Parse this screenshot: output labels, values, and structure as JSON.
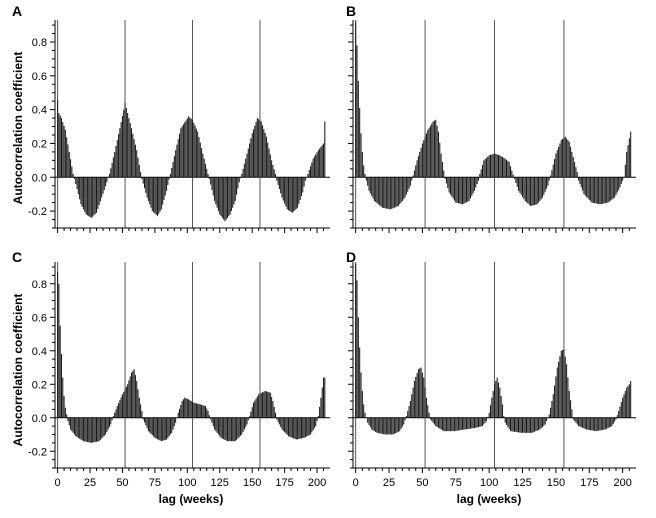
{
  "figure": {
    "ylabel": "Autocorrelation coefficient",
    "xlabel": "lag (weeks)"
  },
  "chart_data": [
    {
      "type": "bar",
      "panel": "A",
      "xlabel": "",
      "ylabel": "Autocorrelation coefficient",
      "xlim": [
        -2,
        210
      ],
      "ylim": [
        -0.3,
        0.93
      ],
      "xticks": [],
      "yticks": [
        -0.2,
        0.0,
        0.2,
        0.4,
        0.6,
        0.8
      ],
      "yticklabels": [
        "-0.2",
        "0.0",
        "0.2",
        "0.4",
        "0.6",
        "0.8"
      ],
      "vlines": [
        0,
        52,
        104,
        156
      ],
      "keypoints": [
        [
          0,
          0.46
        ],
        [
          1,
          0.38
        ],
        [
          3,
          0.35
        ],
        [
          6,
          0.28
        ],
        [
          9,
          0.15
        ],
        [
          12,
          0.02
        ],
        [
          13,
          -0.01
        ],
        [
          18,
          -0.16
        ],
        [
          22,
          -0.22
        ],
        [
          26,
          -0.24
        ],
        [
          30,
          -0.21
        ],
        [
          34,
          -0.12
        ],
        [
          38,
          -0.03
        ],
        [
          40,
          0.02
        ],
        [
          44,
          0.15
        ],
        [
          48,
          0.29
        ],
        [
          51,
          0.4
        ],
        [
          52,
          0.44
        ],
        [
          54,
          0.38
        ],
        [
          57,
          0.29
        ],
        [
          61,
          0.16
        ],
        [
          64,
          0.03
        ],
        [
          65,
          -0.01
        ],
        [
          69,
          -0.12
        ],
        [
          73,
          -0.2
        ],
        [
          77,
          -0.23
        ],
        [
          80,
          -0.19
        ],
        [
          84,
          -0.08
        ],
        [
          87,
          0.02
        ],
        [
          91,
          0.16
        ],
        [
          95,
          0.29
        ],
        [
          101,
          0.36
        ],
        [
          104,
          0.34
        ],
        [
          108,
          0.27
        ],
        [
          112,
          0.14
        ],
        [
          116,
          0.02
        ],
        [
          117,
          -0.01
        ],
        [
          121,
          -0.14
        ],
        [
          125,
          -0.22
        ],
        [
          129,
          -0.26
        ],
        [
          133,
          -0.22
        ],
        [
          137,
          -0.14
        ],
        [
          140,
          -0.03
        ],
        [
          142,
          0.02
        ],
        [
          146,
          0.14
        ],
        [
          150,
          0.26
        ],
        [
          154,
          0.35
        ],
        [
          157,
          0.33
        ],
        [
          161,
          0.24
        ],
        [
          165,
          0.1
        ],
        [
          168,
          0.02
        ],
        [
          169,
          -0.02
        ],
        [
          173,
          -0.12
        ],
        [
          177,
          -0.19
        ],
        [
          181,
          -0.21
        ],
        [
          185,
          -0.18
        ],
        [
          189,
          -0.09
        ],
        [
          191,
          -0.02
        ],
        [
          193,
          0.02
        ],
        [
          197,
          0.11
        ],
        [
          201,
          0.16
        ],
        [
          205,
          0.2
        ],
        [
          206,
          0.33
        ]
      ]
    },
    {
      "type": "bar",
      "panel": "B",
      "xlabel": "",
      "ylabel": "",
      "xlim": [
        -2,
        210
      ],
      "ylim": [
        -0.3,
        0.93
      ],
      "xticks": [],
      "yticks": [
        -0.2,
        0.0,
        0.2,
        0.4,
        0.6,
        0.8
      ],
      "yticklabels": [],
      "vlines": [
        0,
        52,
        104,
        156
      ],
      "keypoints": [
        [
          0,
          0.92
        ],
        [
          1,
          0.78
        ],
        [
          2,
          0.57
        ],
        [
          3,
          0.41
        ],
        [
          4,
          0.26
        ],
        [
          5,
          0.15
        ],
        [
          6,
          0.07
        ],
        [
          7,
          0.02
        ],
        [
          8,
          -0.02
        ],
        [
          10,
          -0.08
        ],
        [
          14,
          -0.14
        ],
        [
          20,
          -0.18
        ],
        [
          26,
          -0.19
        ],
        [
          32,
          -0.17
        ],
        [
          37,
          -0.12
        ],
        [
          41,
          -0.05
        ],
        [
          43,
          0.01
        ],
        [
          46,
          0.1
        ],
        [
          50,
          0.2
        ],
        [
          54,
          0.28
        ],
        [
          58,
          0.33
        ],
        [
          60,
          0.34
        ],
        [
          62,
          0.27
        ],
        [
          64,
          0.14
        ],
        [
          66,
          0.04
        ],
        [
          67,
          -0.01
        ],
        [
          70,
          -0.09
        ],
        [
          75,
          -0.15
        ],
        [
          80,
          -0.16
        ],
        [
          85,
          -0.14
        ],
        [
          89,
          -0.08
        ],
        [
          92,
          -0.02
        ],
        [
          93,
          0.02
        ],
        [
          96,
          0.1
        ],
        [
          100,
          0.13
        ],
        [
          104,
          0.14
        ],
        [
          108,
          0.13
        ],
        [
          112,
          0.11
        ],
        [
          115,
          0.09
        ],
        [
          117,
          0.04
        ],
        [
          119,
          -0.01
        ],
        [
          122,
          -0.08
        ],
        [
          127,
          -0.14
        ],
        [
          131,
          -0.17
        ],
        [
          136,
          -0.16
        ],
        [
          140,
          -0.12
        ],
        [
          144,
          -0.05
        ],
        [
          146,
          0.01
        ],
        [
          150,
          0.14
        ],
        [
          154,
          0.22
        ],
        [
          157,
          0.24
        ],
        [
          160,
          0.21
        ],
        [
          163,
          0.12
        ],
        [
          166,
          0.03
        ],
        [
          167,
          -0.02
        ],
        [
          171,
          -0.1
        ],
        [
          177,
          -0.15
        ],
        [
          183,
          -0.16
        ],
        [
          189,
          -0.15
        ],
        [
          194,
          -0.12
        ],
        [
          198,
          -0.06
        ],
        [
          201,
          0.0
        ],
        [
          203,
          0.15
        ],
        [
          206,
          0.27
        ]
      ]
    },
    {
      "type": "bar",
      "panel": "C",
      "xlabel": "lag (weeks)",
      "ylabel": "Autocorrelation coefficient",
      "xlim": [
        -2,
        210
      ],
      "ylim": [
        -0.3,
        0.93
      ],
      "xticks": [
        0,
        25,
        50,
        75,
        100,
        125,
        150,
        175,
        200
      ],
      "yticks": [
        -0.2,
        0.0,
        0.2,
        0.4,
        0.6,
        0.8
      ],
      "yticklabels": [
        "-0.2",
        "0.0",
        "0.2",
        "0.4",
        "0.6",
        "0.8"
      ],
      "vlines": [
        0,
        52,
        104,
        156
      ],
      "keypoints": [
        [
          0,
          0.87
        ],
        [
          1,
          0.8
        ],
        [
          2,
          0.55
        ],
        [
          3,
          0.38
        ],
        [
          4,
          0.24
        ],
        [
          5,
          0.13
        ],
        [
          6,
          0.06
        ],
        [
          7,
          0.02
        ],
        [
          8,
          -0.02
        ],
        [
          10,
          -0.07
        ],
        [
          14,
          -0.11
        ],
        [
          20,
          -0.14
        ],
        [
          26,
          -0.15
        ],
        [
          32,
          -0.14
        ],
        [
          37,
          -0.1
        ],
        [
          41,
          -0.04
        ],
        [
          43,
          0.01
        ],
        [
          46,
          0.07
        ],
        [
          50,
          0.14
        ],
        [
          54,
          0.2
        ],
        [
          57,
          0.27
        ],
        [
          59,
          0.29
        ],
        [
          61,
          0.22
        ],
        [
          63,
          0.12
        ],
        [
          65,
          0.04
        ],
        [
          66,
          -0.01
        ],
        [
          70,
          -0.08
        ],
        [
          75,
          -0.12
        ],
        [
          80,
          -0.14
        ],
        [
          84,
          -0.13
        ],
        [
          88,
          -0.09
        ],
        [
          91,
          -0.03
        ],
        [
          93,
          0.03
        ],
        [
          96,
          0.1
        ],
        [
          98,
          0.12
        ],
        [
          101,
          0.11
        ],
        [
          105,
          0.09
        ],
        [
          110,
          0.08
        ],
        [
          114,
          0.07
        ],
        [
          116,
          0.04
        ],
        [
          118,
          -0.01
        ],
        [
          121,
          -0.07
        ],
        [
          126,
          -0.12
        ],
        [
          131,
          -0.14
        ],
        [
          137,
          -0.14
        ],
        [
          142,
          -0.1
        ],
        [
          146,
          -0.04
        ],
        [
          148,
          0.01
        ],
        [
          151,
          0.09
        ],
        [
          155,
          0.14
        ],
        [
          160,
          0.16
        ],
        [
          164,
          0.15
        ],
        [
          166,
          0.1
        ],
        [
          168,
          0.03
        ],
        [
          169,
          -0.01
        ],
        [
          173,
          -0.07
        ],
        [
          178,
          -0.11
        ],
        [
          184,
          -0.13
        ],
        [
          190,
          -0.12
        ],
        [
          195,
          -0.1
        ],
        [
          199,
          -0.05
        ],
        [
          201,
          0.01
        ],
        [
          203,
          0.12
        ],
        [
          205,
          0.24
        ]
      ]
    },
    {
      "type": "bar",
      "panel": "D",
      "xlabel": "lag (weeks)",
      "ylabel": "",
      "xlim": [
        -2,
        210
      ],
      "ylim": [
        -0.3,
        0.93
      ],
      "xticks": [
        0,
        25,
        50,
        75,
        100,
        125,
        150,
        175,
        200
      ],
      "yticks": [
        -0.2,
        0.0,
        0.2,
        0.4,
        0.6,
        0.8
      ],
      "yticklabels": [],
      "vlines": [
        0,
        52,
        104,
        156
      ],
      "keypoints": [
        [
          0,
          0.92
        ],
        [
          1,
          0.82
        ],
        [
          2,
          0.6
        ],
        [
          3,
          0.42
        ],
        [
          4,
          0.27
        ],
        [
          5,
          0.16
        ],
        [
          6,
          0.08
        ],
        [
          7,
          0.03
        ],
        [
          8,
          0.0
        ],
        [
          9,
          -0.03
        ],
        [
          12,
          -0.07
        ],
        [
          16,
          -0.09
        ],
        [
          22,
          -0.1
        ],
        [
          28,
          -0.1
        ],
        [
          33,
          -0.08
        ],
        [
          36,
          -0.04
        ],
        [
          38,
          0.01
        ],
        [
          41,
          0.1
        ],
        [
          44,
          0.22
        ],
        [
          47,
          0.29
        ],
        [
          49,
          0.3
        ],
        [
          51,
          0.24
        ],
        [
          53,
          0.12
        ],
        [
          55,
          0.03
        ],
        [
          56,
          -0.01
        ],
        [
          60,
          -0.05
        ],
        [
          66,
          -0.08
        ],
        [
          74,
          -0.08
        ],
        [
          82,
          -0.07
        ],
        [
          90,
          -0.06
        ],
        [
          95,
          -0.05
        ],
        [
          98,
          -0.02
        ],
        [
          100,
          0.03
        ],
        [
          102,
          0.12
        ],
        [
          104,
          0.2
        ],
        [
          106,
          0.24
        ],
        [
          108,
          0.18
        ],
        [
          110,
          0.08
        ],
        [
          111,
          0.01
        ],
        [
          112,
          -0.03
        ],
        [
          116,
          -0.08
        ],
        [
          124,
          -0.09
        ],
        [
          132,
          -0.09
        ],
        [
          138,
          -0.07
        ],
        [
          142,
          -0.04
        ],
        [
          145,
          0.02
        ],
        [
          148,
          0.14
        ],
        [
          151,
          0.3
        ],
        [
          154,
          0.4
        ],
        [
          156,
          0.41
        ],
        [
          158,
          0.32
        ],
        [
          160,
          0.16
        ],
        [
          162,
          0.05
        ],
        [
          163,
          -0.01
        ],
        [
          167,
          -0.05
        ],
        [
          173,
          -0.07
        ],
        [
          180,
          -0.08
        ],
        [
          187,
          -0.07
        ],
        [
          192,
          -0.05
        ],
        [
          195,
          -0.01
        ],
        [
          197,
          0.04
        ],
        [
          200,
          0.12
        ],
        [
          203,
          0.18
        ],
        [
          205,
          0.2
        ],
        [
          206,
          0.22
        ]
      ]
    }
  ]
}
